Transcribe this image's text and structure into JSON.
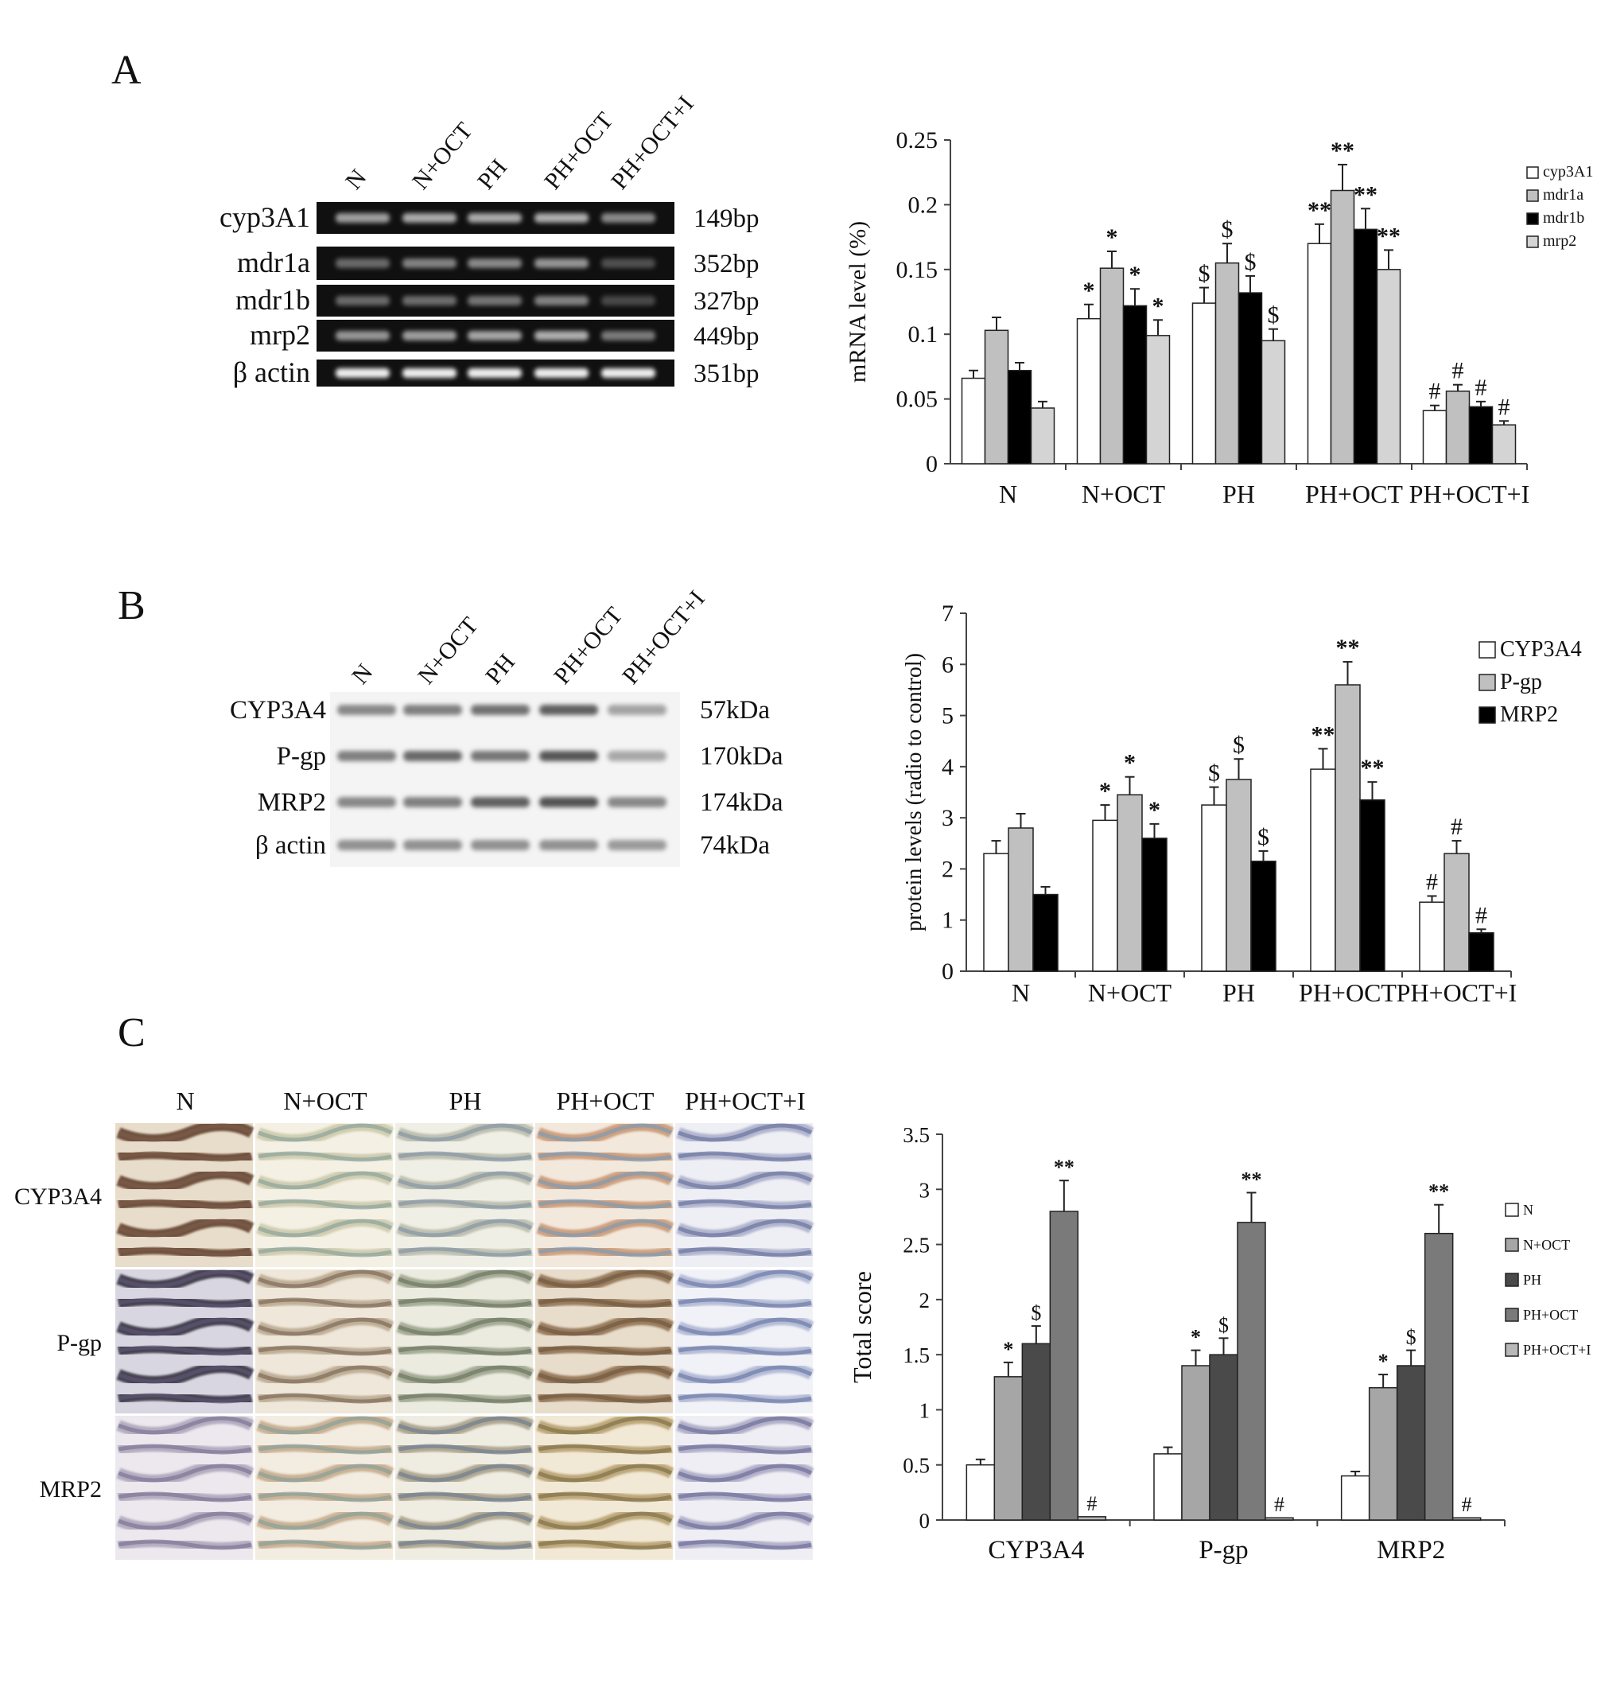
{
  "panels": {
    "A": {
      "letter": "A",
      "gel": {
        "lanes": [
          "N",
          "N+OCT",
          "PH",
          "PH+OCT",
          "PH+OCT+I"
        ],
        "genes": [
          {
            "name": "cyp3A1",
            "size": "149bp",
            "intensity": [
              0.55,
              0.6,
              0.6,
              0.62,
              0.45
            ]
          },
          {
            "name": "mdr1a",
            "size": "352bp",
            "intensity": [
              0.3,
              0.42,
              0.45,
              0.5,
              0.18
            ]
          },
          {
            "name": "mdr1b",
            "size": "327bp",
            "intensity": [
              0.3,
              0.32,
              0.36,
              0.42,
              0.15
            ]
          },
          {
            "name": "mrp2",
            "size": "449bp",
            "intensity": [
              0.5,
              0.55,
              0.58,
              0.62,
              0.38
            ]
          },
          {
            "name": "β actin",
            "size": "351bp",
            "intensity": [
              0.92,
              0.92,
              0.92,
              0.92,
              0.92
            ]
          }
        ]
      }
    },
    "B": {
      "letter": "B",
      "blot": {
        "lanes": [
          "N",
          "N+OCT",
          "PH",
          "PH+OCT",
          "PH+OCT+I"
        ],
        "proteins": [
          {
            "name": "CYP3A4",
            "size": "57kDa",
            "intensity": [
              0.55,
              0.6,
              0.68,
              0.78,
              0.4
            ]
          },
          {
            "name": "P-gp",
            "size": "170kDa",
            "intensity": [
              0.6,
              0.72,
              0.65,
              0.82,
              0.38
            ]
          },
          {
            "name": "MRP2",
            "size": "174kDa",
            "intensity": [
              0.55,
              0.6,
              0.78,
              0.85,
              0.55
            ]
          },
          {
            "name": "β actin",
            "size": "74kDa",
            "intensity": [
              0.5,
              0.5,
              0.5,
              0.5,
              0.45
            ]
          }
        ]
      }
    },
    "C": {
      "letter": "C",
      "ihc": {
        "columns": [
          "N",
          "N+OCT",
          "PH",
          "PH+OCT",
          "PH+OCT+I"
        ],
        "rows": [
          "CYP3A4",
          "P-gp",
          "MRP2"
        ]
      }
    }
  },
  "chart_data": [
    {
      "id": "A",
      "type": "bar",
      "categories": [
        "N",
        "N+OCT",
        "PH",
        "PH+OCT",
        "PH+OCT+I"
      ],
      "ylabel": "mRNA level (%)",
      "ylim": [
        0,
        0.25
      ],
      "yticks": [
        "0",
        "0.05",
        "0.1",
        "0.15",
        "0.2",
        "0.25"
      ],
      "legend_position": "top-right",
      "series": [
        {
          "name": "cyp3A1",
          "color": "#ffffff",
          "values": [
            0.066,
            0.112,
            0.124,
            0.17,
            0.041
          ],
          "errors": [
            0.006,
            0.011,
            0.012,
            0.015,
            0.004
          ],
          "marks": [
            "",
            "*",
            "$",
            "**",
            "#"
          ]
        },
        {
          "name": "mdr1a",
          "color": "#c0c0c0",
          "values": [
            0.103,
            0.151,
            0.155,
            0.211,
            0.056
          ],
          "errors": [
            0.01,
            0.013,
            0.015,
            0.02,
            0.005
          ],
          "marks": [
            "",
            "*",
            "$",
            "**",
            "#"
          ]
        },
        {
          "name": "mdr1b",
          "color": "#000000",
          "values": [
            0.072,
            0.122,
            0.132,
            0.181,
            0.044
          ],
          "errors": [
            0.006,
            0.013,
            0.013,
            0.016,
            0.004
          ],
          "marks": [
            "",
            "*",
            "$",
            "**",
            "#"
          ]
        },
        {
          "name": "mrp2",
          "color": "#d4d4d4",
          "values": [
            0.043,
            0.099,
            0.095,
            0.15,
            0.03
          ],
          "errors": [
            0.005,
            0.012,
            0.009,
            0.015,
            0.003
          ],
          "marks": [
            "",
            "*",
            "$",
            "**",
            "#"
          ]
        }
      ]
    },
    {
      "id": "B",
      "type": "bar",
      "categories": [
        "N",
        "N+OCT",
        "PH",
        "PH+OCT",
        "PH+OCT+I"
      ],
      "ylabel": "protein levels (radio to control)",
      "ylim": [
        0,
        7
      ],
      "yticks": [
        "0",
        "1",
        "2",
        "3",
        "4",
        "5",
        "6",
        "7"
      ],
      "legend_position": "top-right",
      "series": [
        {
          "name": "CYP3A4",
          "color": "#ffffff",
          "values": [
            2.3,
            2.95,
            3.25,
            3.95,
            1.35
          ],
          "errors": [
            0.25,
            0.3,
            0.35,
            0.4,
            0.12
          ],
          "marks": [
            "",
            "*",
            "$",
            "**",
            "#"
          ]
        },
        {
          "name": "P-gp",
          "color": "#c0c0c0",
          "values": [
            2.8,
            3.45,
            3.75,
            5.6,
            2.3
          ],
          "errors": [
            0.28,
            0.35,
            0.4,
            0.45,
            0.25
          ],
          "marks": [
            "",
            "*",
            "$",
            "**",
            "#"
          ]
        },
        {
          "name": "MRP2",
          "color": "#000000",
          "values": [
            1.5,
            2.6,
            2.15,
            3.35,
            0.75
          ],
          "errors": [
            0.15,
            0.28,
            0.2,
            0.35,
            0.07
          ],
          "marks": [
            "",
            "*",
            "$",
            "**",
            "#"
          ]
        }
      ]
    },
    {
      "id": "C",
      "type": "bar",
      "categories": [
        "CYP3A4",
        "P-gp",
        "MRP2"
      ],
      "ylabel": "Total score",
      "ylim": [
        0,
        3.5
      ],
      "yticks": [
        "0",
        "0.5",
        "1",
        "1.5",
        "2",
        "2.5",
        "3",
        "3.5"
      ],
      "legend_position": "right",
      "series": [
        {
          "name": "N",
          "color": "#ffffff",
          "values": [
            0.5,
            0.6,
            0.4
          ],
          "errors": [
            0.05,
            0.06,
            0.04
          ],
          "marks": [
            "",
            "",
            ""
          ]
        },
        {
          "name": "N+OCT",
          "color": "#a6a6a6",
          "values": [
            1.3,
            1.4,
            1.2
          ],
          "errors": [
            0.13,
            0.14,
            0.12
          ],
          "marks": [
            "*",
            "*",
            "*"
          ]
        },
        {
          "name": "PH",
          "color": "#4a4a4a",
          "values": [
            1.6,
            1.5,
            1.4
          ],
          "errors": [
            0.16,
            0.15,
            0.14
          ],
          "marks": [
            "$",
            "$",
            "$"
          ]
        },
        {
          "name": "PH+OCT",
          "color": "#7a7a7a",
          "values": [
            2.8,
            2.7,
            2.6
          ],
          "errors": [
            0.28,
            0.27,
            0.26
          ],
          "marks": [
            "**",
            "**",
            "**"
          ]
        },
        {
          "name": "PH+OCT+I",
          "color": "#b8b8b8",
          "values": [
            0.03,
            0.02,
            0.02
          ],
          "errors": [
            0,
            0,
            0
          ],
          "marks": [
            "#",
            "#",
            "#"
          ]
        }
      ]
    }
  ]
}
